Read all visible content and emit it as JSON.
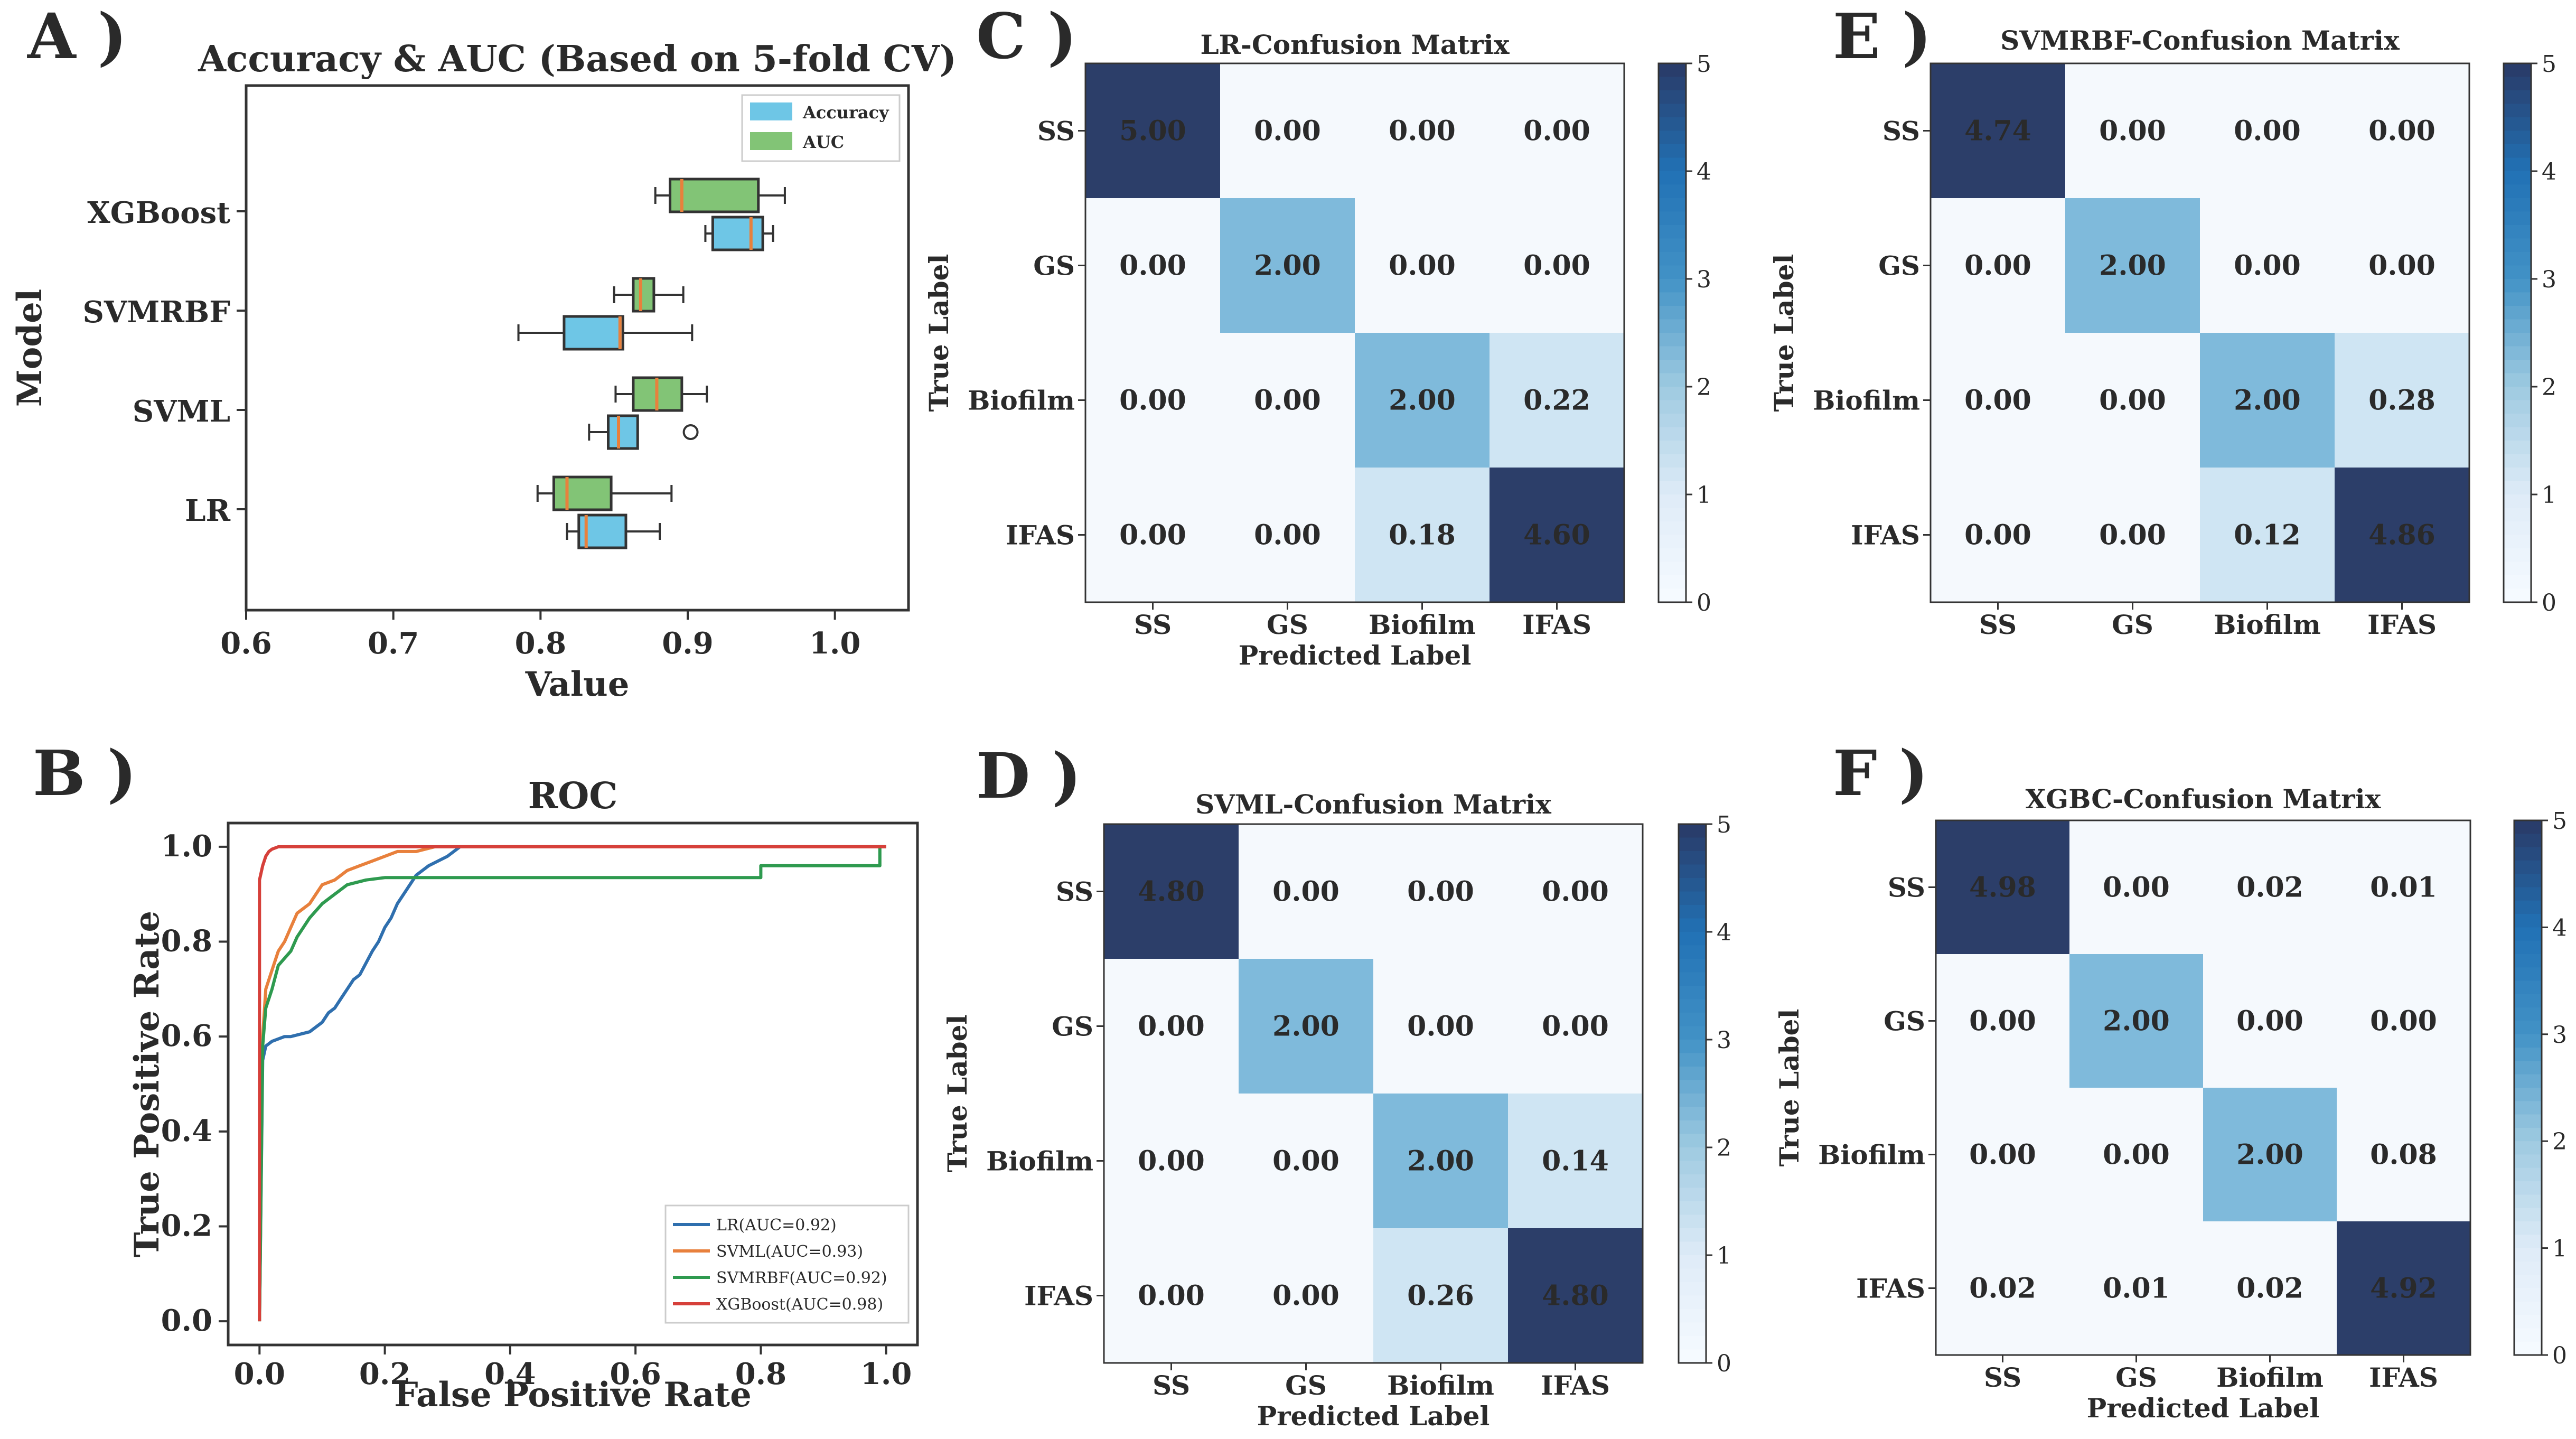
{
  "panels": {
    "A": "A )",
    "B": "B )",
    "C": "C )",
    "D": "D )",
    "E": "E )",
    "F": "F )"
  },
  "chart_data": [
    {
      "id": "A",
      "type": "boxplot",
      "title": "Accuracy & AUC (Based on 5-fold CV)",
      "xlabel": "Value",
      "ylabel": "Model",
      "xlim": [
        0.6,
        1.05
      ],
      "xticks": [
        "0.6",
        "0.7",
        "0.8",
        "0.9",
        "1.0"
      ],
      "xtick_values": [
        0.6,
        0.7,
        0.8,
        0.9,
        1.0
      ],
      "categories": [
        "XGBoost",
        "SVMRBF",
        "SVML",
        "LR"
      ],
      "legend": [
        {
          "name": "Accuracy",
          "color": "#6ec6e6"
        },
        {
          "name": "AUC",
          "color": "#82c476"
        }
      ],
      "median_color": "#e8803c",
      "boxes": [
        {
          "model": "XGBoost",
          "metric": "AUC",
          "whislo": 0.878,
          "q1": 0.888,
          "med": 0.896,
          "q3": 0.948,
          "whishi": 0.966,
          "fliers": []
        },
        {
          "model": "XGBoost",
          "metric": "Accuracy",
          "whislo": 0.912,
          "q1": 0.917,
          "med": 0.943,
          "q3": 0.951,
          "whishi": 0.958,
          "fliers": []
        },
        {
          "model": "SVMRBF",
          "metric": "AUC",
          "whislo": 0.85,
          "q1": 0.863,
          "med": 0.868,
          "q3": 0.877,
          "whishi": 0.897,
          "fliers": []
        },
        {
          "model": "SVMRBF",
          "metric": "Accuracy",
          "whislo": 0.785,
          "q1": 0.816,
          "med": 0.854,
          "q3": 0.856,
          "whishi": 0.903,
          "fliers": []
        },
        {
          "model": "SVML",
          "metric": "AUC",
          "whislo": 0.851,
          "q1": 0.863,
          "med": 0.879,
          "q3": 0.896,
          "whishi": 0.913,
          "fliers": []
        },
        {
          "model": "SVML",
          "metric": "Accuracy",
          "whislo": 0.833,
          "q1": 0.846,
          "med": 0.853,
          "q3": 0.866,
          "whishi": 0.866,
          "fliers": [
            0.902
          ]
        },
        {
          "model": "LR",
          "metric": "AUC",
          "whislo": 0.798,
          "q1": 0.809,
          "med": 0.818,
          "q3": 0.848,
          "whishi": 0.889,
          "fliers": []
        },
        {
          "model": "LR",
          "metric": "Accuracy",
          "whislo": 0.818,
          "q1": 0.826,
          "med": 0.831,
          "q3": 0.858,
          "whishi": 0.881,
          "fliers": []
        }
      ]
    },
    {
      "id": "B",
      "type": "line",
      "title": "ROC",
      "xlabel": "False Positive Rate",
      "ylabel": "True Positive Rate",
      "xlim": [
        -0.05,
        1.05
      ],
      "ylim": [
        -0.05,
        1.05
      ],
      "xticks": [
        "0.0",
        "0.2",
        "0.4",
        "0.6",
        "0.8",
        "1.0"
      ],
      "yticks": [
        "0.0",
        "0.2",
        "0.4",
        "0.6",
        "0.8",
        "1.0"
      ],
      "tick_values": [
        0.0,
        0.2,
        0.4,
        0.6,
        0.8,
        1.0
      ],
      "legend_position": "lower right",
      "series": [
        {
          "name": "LR(AUC=0.92)",
          "color": "#2f6fae",
          "x": [
            0,
            0.005,
            0.01,
            0.02,
            0.04,
            0.05,
            0.08,
            0.1,
            0.11,
            0.12,
            0.13,
            0.14,
            0.15,
            0.16,
            0.18,
            0.19,
            0.2,
            0.21,
            0.22,
            0.23,
            0.24,
            0.25,
            0.27,
            0.3,
            0.32,
            1.0
          ],
          "y": [
            0,
            0.55,
            0.58,
            0.59,
            0.6,
            0.6,
            0.61,
            0.63,
            0.65,
            0.66,
            0.68,
            0.7,
            0.72,
            0.73,
            0.78,
            0.8,
            0.83,
            0.85,
            0.88,
            0.9,
            0.92,
            0.94,
            0.96,
            0.98,
            1.0,
            1.0
          ]
        },
        {
          "name": "SVML(AUC=0.93)",
          "color": "#e8803c",
          "x": [
            0,
            0.005,
            0.01,
            0.02,
            0.03,
            0.04,
            0.05,
            0.06,
            0.07,
            0.08,
            0.09,
            0.1,
            0.12,
            0.14,
            0.16,
            0.18,
            0.2,
            0.22,
            0.25,
            0.28,
            1.0
          ],
          "y": [
            0,
            0.6,
            0.7,
            0.74,
            0.78,
            0.8,
            0.83,
            0.86,
            0.87,
            0.88,
            0.9,
            0.92,
            0.93,
            0.95,
            0.96,
            0.97,
            0.98,
            0.99,
            0.99,
            1.0,
            1.0
          ]
        },
        {
          "name": "SVMRBF(AUC=0.92)",
          "color": "#2e9a4f",
          "x": [
            0,
            0.005,
            0.01,
            0.02,
            0.03,
            0.05,
            0.06,
            0.08,
            0.1,
            0.12,
            0.14,
            0.17,
            0.2,
            0.3,
            0.5,
            0.8,
            0.8,
            0.99,
            0.99,
            1.0
          ],
          "y": [
            0,
            0.58,
            0.66,
            0.7,
            0.75,
            0.78,
            0.81,
            0.85,
            0.88,
            0.9,
            0.92,
            0.93,
            0.935,
            0.935,
            0.935,
            0.935,
            0.96,
            0.96,
            1.0,
            1.0
          ]
        },
        {
          "name": "XGBoost(AUC=0.98)",
          "color": "#d6403a",
          "x": [
            0,
            0.0,
            0.005,
            0.01,
            0.015,
            0.02,
            0.03,
            1.0
          ],
          "y": [
            0,
            0.93,
            0.96,
            0.98,
            0.99,
            0.995,
            1.0,
            1.0
          ]
        }
      ]
    },
    {
      "id": "C",
      "type": "heatmap",
      "title": "LR-Confusion Matrix",
      "xlabel": "Predicted Label",
      "ylabel": "True Label",
      "labels": [
        "SS",
        "GS",
        "Biofilm",
        "IFAS"
      ],
      "vmin": 0,
      "vmax": 5,
      "colorbar_ticks": [
        "0",
        "1",
        "2",
        "3",
        "4",
        "5"
      ],
      "values": [
        [
          5.0,
          0.0,
          0.0,
          0.0
        ],
        [
          0.0,
          2.0,
          0.0,
          0.0
        ],
        [
          0.0,
          0.0,
          2.0,
          0.22
        ],
        [
          0.0,
          0.0,
          0.18,
          4.6
        ]
      ],
      "cells": [
        [
          "5.00",
          "0.00",
          "0.00",
          "0.00"
        ],
        [
          "0.00",
          "2.00",
          "0.00",
          "0.00"
        ],
        [
          "0.00",
          "0.00",
          "2.00",
          "0.22"
        ],
        [
          "0.00",
          "0.00",
          "0.18",
          "4.60"
        ]
      ]
    },
    {
      "id": "D",
      "type": "heatmap",
      "title": "SVML-Confusion Matrix",
      "xlabel": "Predicted Label",
      "ylabel": "True Label",
      "labels": [
        "SS",
        "GS",
        "Biofilm",
        "IFAS"
      ],
      "vmin": 0,
      "vmax": 5,
      "colorbar_ticks": [
        "0",
        "1",
        "2",
        "3",
        "4",
        "5"
      ],
      "values": [
        [
          4.8,
          0.0,
          0.0,
          0.0
        ],
        [
          0.0,
          2.0,
          0.0,
          0.0
        ],
        [
          0.0,
          0.0,
          2.0,
          0.14
        ],
        [
          0.0,
          0.0,
          0.26,
          4.8
        ]
      ],
      "cells": [
        [
          "4.80",
          "0.00",
          "0.00",
          "0.00"
        ],
        [
          "0.00",
          "2.00",
          "0.00",
          "0.00"
        ],
        [
          "0.00",
          "0.00",
          "2.00",
          "0.14"
        ],
        [
          "0.00",
          "0.00",
          "0.26",
          "4.80"
        ]
      ]
    },
    {
      "id": "E",
      "type": "heatmap",
      "title": "SVMRBF-Confusion Matrix",
      "xlabel": "",
      "ylabel": "True Label",
      "labels": [
        "SS",
        "GS",
        "Biofilm",
        "IFAS"
      ],
      "vmin": 0,
      "vmax": 5,
      "colorbar_ticks": [
        "0",
        "1",
        "2",
        "3",
        "4",
        "5"
      ],
      "values": [
        [
          4.74,
          0.0,
          0.0,
          0.0
        ],
        [
          0.0,
          2.0,
          0.0,
          0.0
        ],
        [
          0.0,
          0.0,
          2.0,
          0.28
        ],
        [
          0.0,
          0.0,
          0.12,
          4.86
        ]
      ],
      "cells": [
        [
          "4.74",
          "0.00",
          "0.00",
          "0.00"
        ],
        [
          "0.00",
          "2.00",
          "0.00",
          "0.00"
        ],
        [
          "0.00",
          "0.00",
          "2.00",
          "0.28"
        ],
        [
          "0.00",
          "0.00",
          "0.12",
          "4.86"
        ]
      ]
    },
    {
      "id": "F",
      "type": "heatmap",
      "title": "XGBC-Confusion Matrix",
      "xlabel": "Predicted Label",
      "ylabel": "True Label",
      "labels": [
        "SS",
        "GS",
        "Biofilm",
        "IFAS"
      ],
      "vmin": 0,
      "vmax": 5,
      "colorbar_ticks": [
        "0",
        "1",
        "2",
        "3",
        "4",
        "5"
      ],
      "values": [
        [
          4.98,
          0.0,
          0.02,
          0.01
        ],
        [
          0.0,
          2.0,
          0.0,
          0.0
        ],
        [
          0.0,
          0.0,
          2.0,
          0.08
        ],
        [
          0.02,
          0.01,
          0.02,
          4.92
        ]
      ],
      "cells": [
        [
          "4.98",
          "0.00",
          "0.02",
          "0.01"
        ],
        [
          "0.00",
          "2.00",
          "0.00",
          "0.00"
        ],
        [
          "0.00",
          "0.00",
          "2.00",
          "0.08"
        ],
        [
          "0.02",
          "0.01",
          "0.02",
          "4.92"
        ]
      ]
    }
  ]
}
